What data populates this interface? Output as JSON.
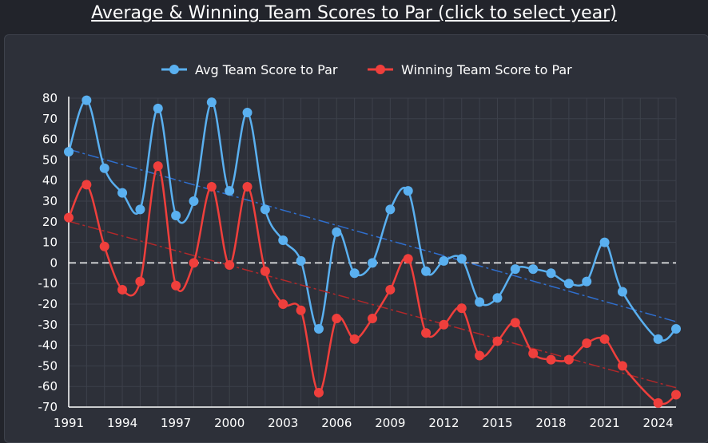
{
  "header": {
    "title": "Average & Winning Team Scores to Par (click to select year)"
  },
  "chart_data": {
    "type": "line",
    "x": [
      1991,
      1992,
      1993,
      1994,
      1995,
      1996,
      1997,
      1998,
      1999,
      2000,
      2001,
      2002,
      2003,
      2004,
      2005,
      2006,
      2007,
      2008,
      2009,
      2010,
      2011,
      2012,
      2013,
      2014,
      2015,
      2016,
      2017,
      2018,
      2019,
      2020,
      2021,
      2022,
      2024,
      2025
    ],
    "series": [
      {
        "name": "Avg Team Score to Par",
        "color": "#5ab0f0",
        "trend_color": "#2f6fcf",
        "values": [
          54,
          79,
          46,
          34,
          26,
          75,
          23,
          30,
          78,
          35,
          73,
          26,
          11,
          1,
          -32,
          15,
          -5,
          0,
          26,
          35,
          -4,
          1,
          2,
          -19,
          -17,
          -3,
          -3,
          -5,
          -10,
          -9,
          10,
          -14,
          -37,
          -32
        ]
      },
      {
        "name": "Winning Team Score to Par",
        "color": "#ef3f3c",
        "trend_color": "#b3282a",
        "values": [
          22,
          38,
          8,
          -13,
          -9,
          47,
          -11,
          0,
          37,
          -1,
          37,
          -4,
          -20,
          -23,
          -63,
          -27,
          -37,
          -27,
          -13,
          2,
          -34,
          -30,
          -22,
          -45,
          -38,
          -29,
          -44,
          -47,
          -47,
          -39,
          -37,
          -50,
          -68,
          -64
        ]
      }
    ],
    "xlabel": "",
    "ylabel": "",
    "xlim": [
      1991,
      2025
    ],
    "ylim": [
      -70,
      80
    ],
    "x_ticks": [
      1991,
      1994,
      1997,
      2000,
      2003,
      2006,
      2009,
      2012,
      2015,
      2018,
      2021,
      2024
    ],
    "y_ticks": [
      80,
      70,
      60,
      50,
      40,
      30,
      20,
      10,
      0,
      -10,
      -20,
      -30,
      -40,
      -50,
      -60,
      -70
    ],
    "trendlines": true,
    "zero_line": true,
    "grid": true,
    "legend_position": "top-center"
  }
}
